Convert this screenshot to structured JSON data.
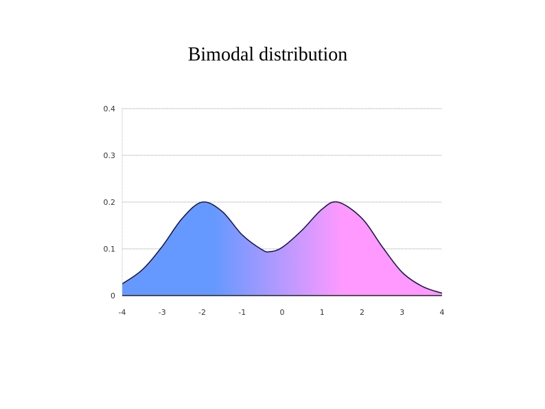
{
  "slide": {
    "title": "Bimodal distribution"
  },
  "chart_data": {
    "type": "area",
    "title": "Bimodal distribution",
    "xlabel": "",
    "ylabel": "",
    "xlim": [
      -4,
      4
    ],
    "ylim": [
      0,
      0.4
    ],
    "x_ticks": [
      -4,
      -3,
      -2,
      -1,
      0,
      1,
      2,
      3,
      4
    ],
    "x_tick_labels": [
      "-4",
      "-3",
      "-2",
      "-1",
      "0",
      "1",
      "2",
      "3",
      "4"
    ],
    "y_ticks": [
      0,
      0.1,
      0.2,
      0.3,
      0.4
    ],
    "y_tick_labels": [
      "0",
      "0.1",
      "0.2",
      "0.3",
      "0.4"
    ],
    "grid": "horizontal, dotted",
    "legend": "none",
    "colors": {
      "left_fill": "#6699ff",
      "right_fill": "#ff99ff",
      "outline": "#1a1a4d",
      "grid": "#999999"
    },
    "series": [
      {
        "x": [
          -4,
          -3.5,
          -3,
          -2.5,
          -2,
          -1.5,
          -1,
          -0.5,
          -0.3,
          0,
          0.5,
          1,
          1.4,
          2,
          2.5,
          3,
          3.5,
          4
        ],
        "values": [
          0.025,
          0.055,
          0.105,
          0.165,
          0.2,
          0.18,
          0.13,
          0.098,
          0.094,
          0.103,
          0.14,
          0.185,
          0.2,
          0.165,
          0.105,
          0.05,
          0.02,
          0.005
        ]
      }
    ]
  }
}
